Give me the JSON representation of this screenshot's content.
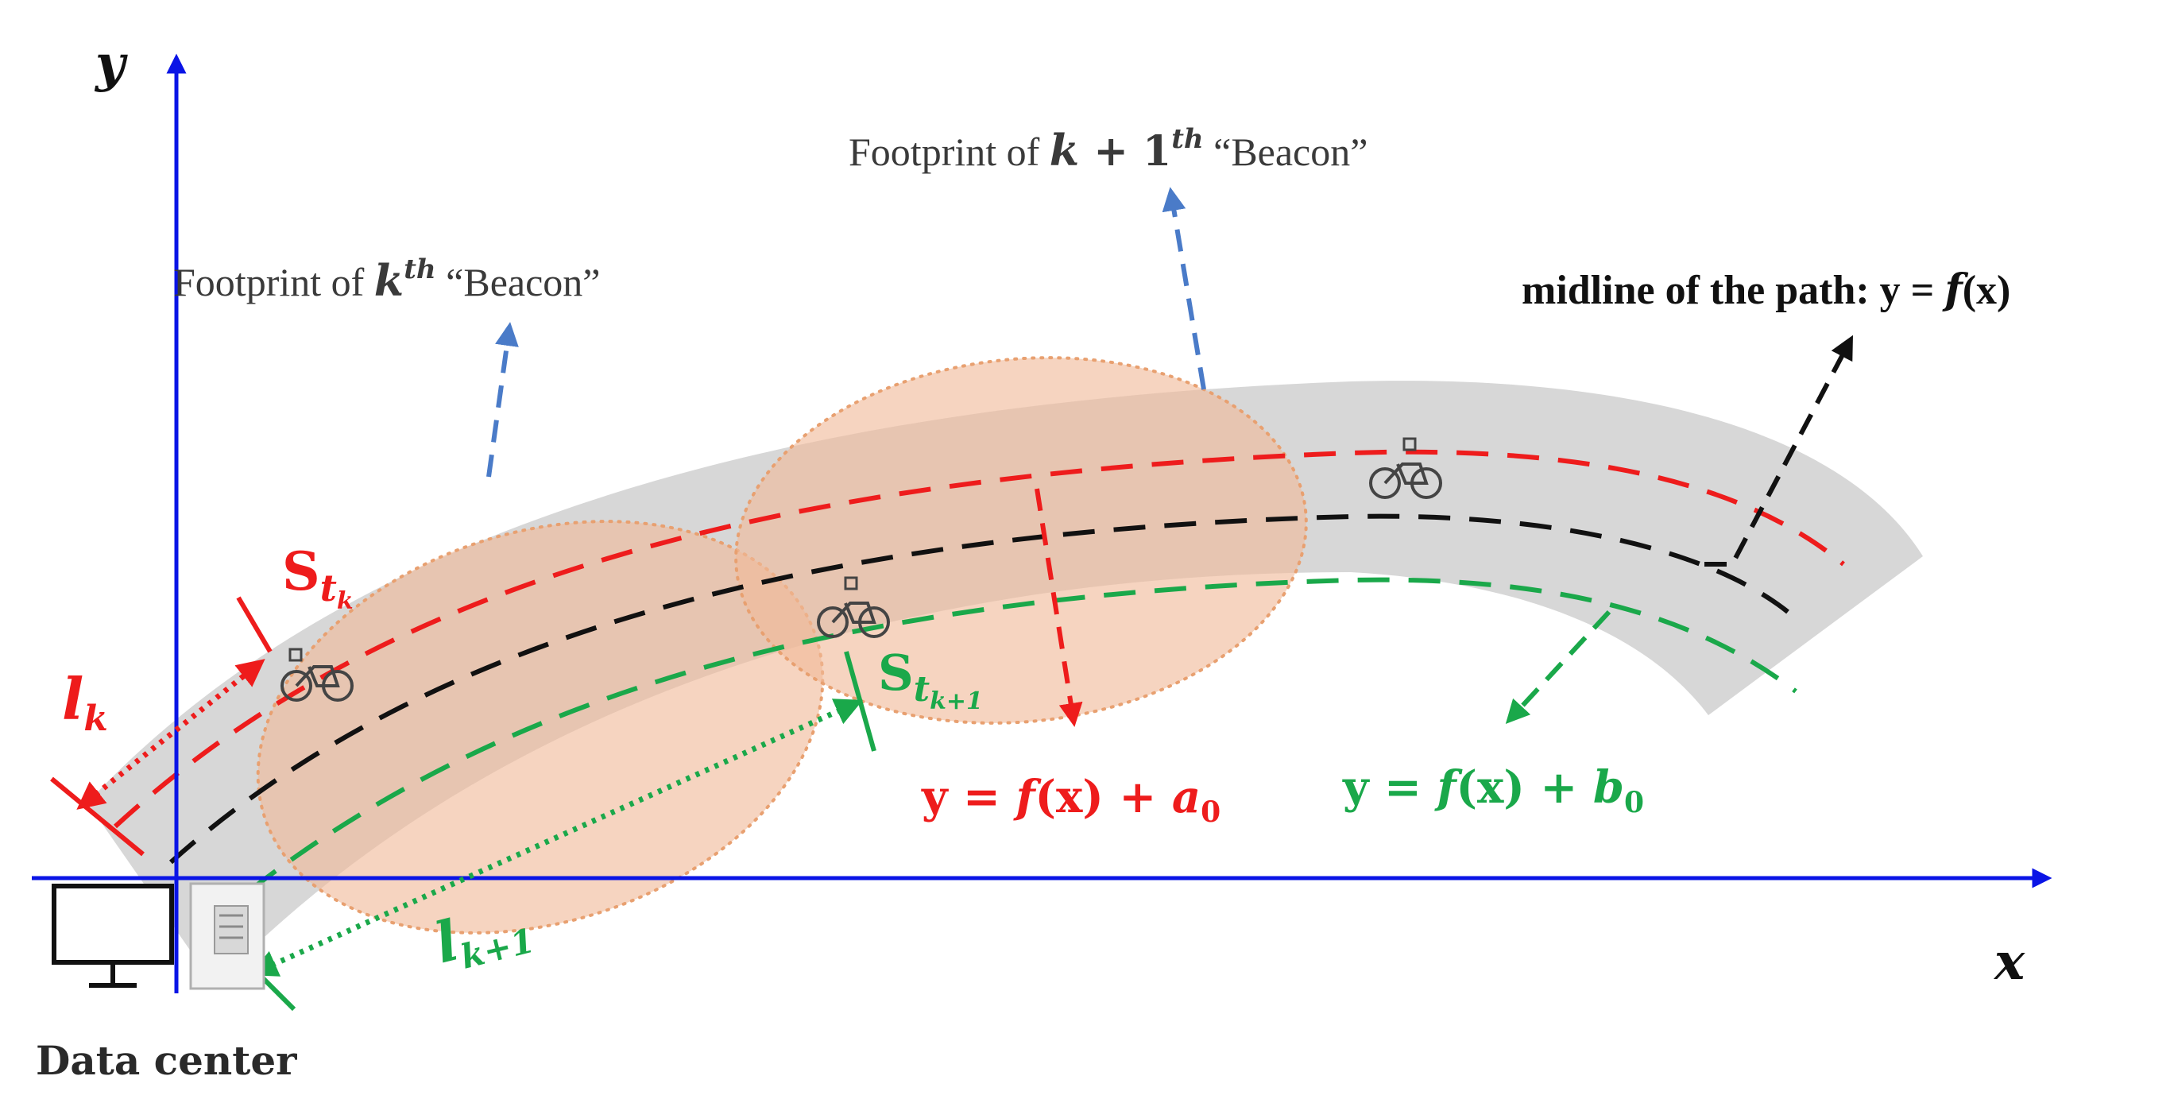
{
  "axes": {
    "x_label": "x",
    "y_label": "y"
  },
  "annotations": {
    "beacon_k": {
      "prefix": "Footprint of ",
      "var": "k",
      "sup": "th",
      "suffix": " “Beacon”"
    },
    "beacon_k1": {
      "prefix": "Footprint of ",
      "var": "k",
      "mid": " + 1",
      "sup": "th",
      "suffix": " “Beacon”"
    },
    "midline": {
      "prefix": "midline of the path: y = ",
      "func": "f",
      "args": "(x)"
    },
    "eq_red": {
      "lhs": "y = ",
      "func": "f",
      "args": "(x)",
      "plus": " + ",
      "var": "a",
      "sub": "0"
    },
    "eq_green": {
      "lhs": "y = ",
      "func": "f",
      "args": "(x)",
      "plus": " + ",
      "var": "b",
      "sub": "0"
    },
    "s_tk": {
      "base": "S",
      "sub": "t",
      "subsub": "k"
    },
    "s_tk1": {
      "base": "S",
      "sub": "t",
      "subsub": "k+1"
    },
    "l_k": {
      "base": "l",
      "sub": "k"
    },
    "l_k1": {
      "base": "l",
      "sub": "k+1"
    },
    "data_center": "Data center"
  },
  "colors": {
    "axis": "#0a14e6",
    "red": "#ee1c1c",
    "green": "#1aa84a",
    "black": "#111111",
    "blue_arrow": "#4a7bc8",
    "road": "#d7d7d7",
    "footprint_fill": "#f0b999",
    "footprint_stroke": "#e8a070"
  }
}
